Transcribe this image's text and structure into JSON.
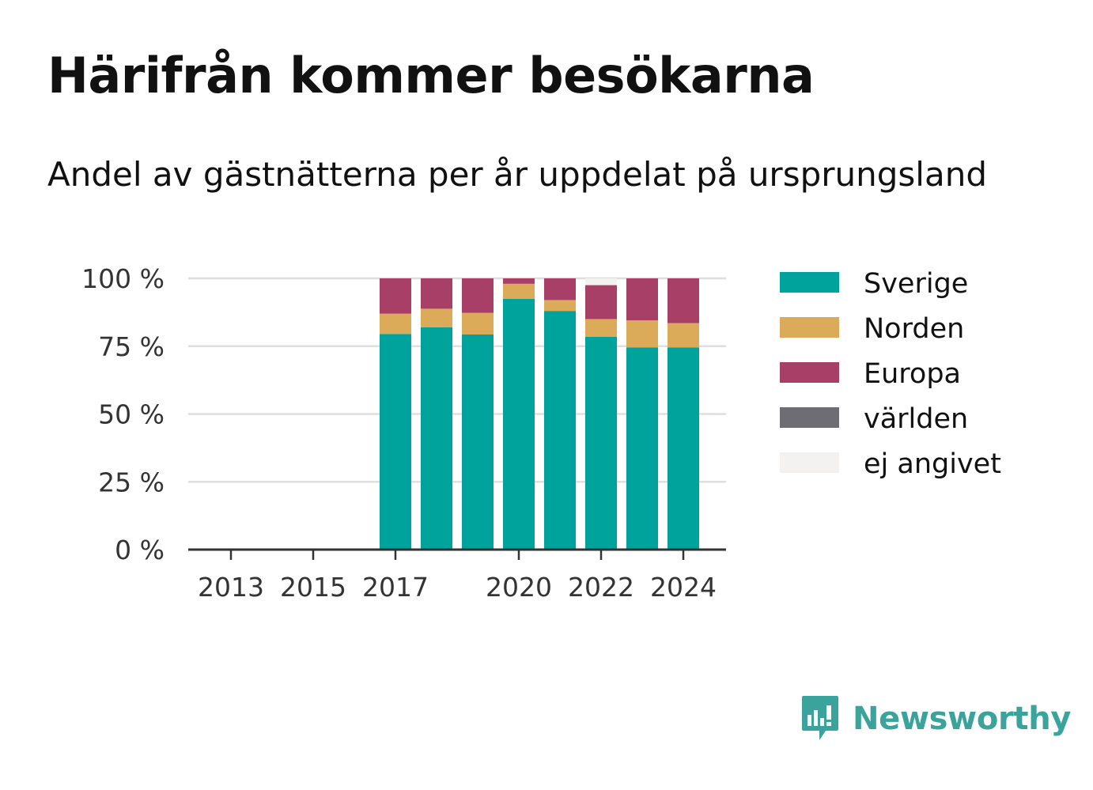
{
  "title": "Härifrån kommer besökarna",
  "subtitle": "Andel av gästnätterna per år uppdelat på ursprungsland",
  "brand": {
    "name": "Newsworthy",
    "color": "#3aa39b"
  },
  "chart_data": {
    "type": "bar",
    "stacked": true,
    "categories": [
      "2013",
      "2014",
      "2015",
      "2016",
      "2017",
      "2018",
      "2019",
      "2020",
      "2021",
      "2022",
      "2023",
      "2024"
    ],
    "x_tick_labels": [
      "2013",
      "2015",
      "2017",
      "2020",
      "2022",
      "2024"
    ],
    "y_tick_labels": [
      "0 %",
      "25 %",
      "50 %",
      "75 %",
      "100 %"
    ],
    "ylim": [
      0,
      100
    ],
    "y_ticks": [
      0,
      25,
      50,
      75,
      100
    ],
    "grid": true,
    "legend_position": "right",
    "series": [
      {
        "name": "Sverige",
        "color": "#00a39b",
        "values": [
          null,
          null,
          null,
          null,
          79.5,
          82,
          79.3,
          92.5,
          88,
          78.5,
          74.5,
          74.5
        ]
      },
      {
        "name": "Norden",
        "color": "#dbab5a",
        "values": [
          null,
          null,
          null,
          null,
          7.5,
          6.8,
          8,
          5.5,
          4,
          6.5,
          10,
          9
        ]
      },
      {
        "name": "Europa",
        "color": "#a83f66",
        "values": [
          null,
          null,
          null,
          null,
          13,
          11.2,
          12.7,
          2,
          8,
          12.5,
          15.5,
          16.5
        ]
      },
      {
        "name": "världen",
        "color": "#6e6d74",
        "values": [
          null,
          null,
          null,
          null,
          0,
          0,
          0,
          0,
          0,
          0,
          0,
          0
        ]
      },
      {
        "name": "ej angivet",
        "color": "#f3f2f1",
        "values": [
          null,
          null,
          null,
          null,
          0,
          0,
          0,
          0,
          0,
          2.5,
          0,
          0
        ]
      }
    ]
  }
}
